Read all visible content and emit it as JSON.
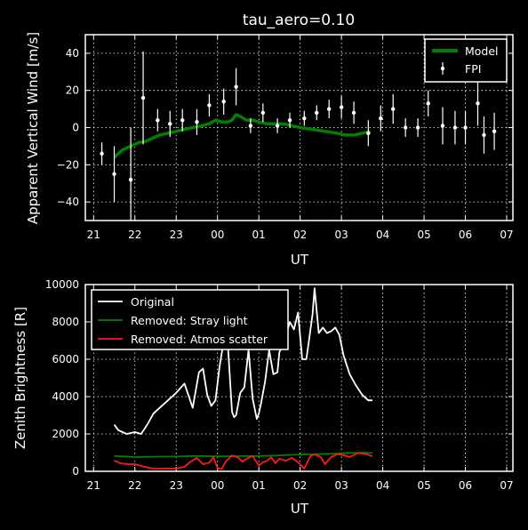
{
  "chart_data": [
    {
      "type": "scatter",
      "title": "tau_aero=0.10",
      "xlabel": "UT",
      "ylabel": "Apparent Vertical Wind [m/s]",
      "x_ticks": [
        "21",
        "22",
        "23",
        "00",
        "01",
        "02",
        "03",
        "04",
        "05",
        "06",
        "07"
      ],
      "y_ticks": [
        "−40",
        "−20",
        "0",
        "20",
        "40"
      ],
      "xlim": [
        20.8,
        31.15
      ],
      "ylim": [
        -50,
        50
      ],
      "grid": true,
      "legend_position": "top-right",
      "series": [
        {
          "name": "Model",
          "type": "line",
          "color": "#007f00",
          "x": [
            21.5,
            21.7,
            21.9,
            22.1,
            22.25,
            22.4,
            22.6,
            22.8,
            23.0,
            23.2,
            23.4,
            23.6,
            23.8,
            23.95,
            24.1,
            24.25,
            24.35,
            24.45,
            24.55,
            24.7,
            24.85,
            25.0,
            25.2,
            25.4,
            25.6,
            25.8,
            26.0,
            26.3,
            26.6,
            26.9,
            27.1,
            27.3,
            27.5,
            27.7
          ],
          "y": [
            -16,
            -12,
            -10,
            -8,
            -7.5,
            -6,
            -4,
            -3,
            -2,
            -1,
            0,
            1,
            2,
            4,
            3,
            3,
            4,
            7,
            6,
            4,
            4,
            3,
            2,
            2,
            2,
            1,
            0,
            -1,
            -2,
            -3,
            -4,
            -4,
            -3,
            -2
          ]
        },
        {
          "name": "FPI",
          "type": "errorbar",
          "color": "#ffffff",
          "points": [
            {
              "x": 21.2,
              "y": -14,
              "err": 6
            },
            {
              "x": 21.5,
              "y": -25,
              "err": 15
            },
            {
              "x": 21.9,
              "y": -28,
              "err": 28
            },
            {
              "x": 22.2,
              "y": 16,
              "err": 25
            },
            {
              "x": 22.55,
              "y": 4,
              "err": 6
            },
            {
              "x": 22.85,
              "y": 2,
              "err": 7
            },
            {
              "x": 23.15,
              "y": 4,
              "err": 6
            },
            {
              "x": 23.5,
              "y": 3,
              "err": 7
            },
            {
              "x": 23.8,
              "y": 12,
              "err": 6
            },
            {
              "x": 24.15,
              "y": 14,
              "err": 7
            },
            {
              "x": 24.45,
              "y": 22,
              "err": 10
            },
            {
              "x": 24.8,
              "y": 1,
              "err": 4
            },
            {
              "x": 25.1,
              "y": 8,
              "err": 5
            },
            {
              "x": 25.45,
              "y": 1,
              "err": 4
            },
            {
              "x": 25.75,
              "y": 4,
              "err": 4
            },
            {
              "x": 26.1,
              "y": 5,
              "err": 4
            },
            {
              "x": 26.4,
              "y": 8,
              "err": 4
            },
            {
              "x": 26.7,
              "y": 10,
              "err": 5
            },
            {
              "x": 27.0,
              "y": 11,
              "err": 6
            },
            {
              "x": 27.3,
              "y": 8,
              "err": 6
            },
            {
              "x": 27.65,
              "y": -3,
              "err": 7
            },
            {
              "x": 27.95,
              "y": 5,
              "err": 7
            },
            {
              "x": 28.25,
              "y": 10,
              "err": 8
            },
            {
              "x": 28.55,
              "y": 0,
              "err": 5
            },
            {
              "x": 28.85,
              "y": 0,
              "err": 5
            },
            {
              "x": 29.1,
              "y": 13,
              "err": 7
            },
            {
              "x": 29.45,
              "y": 1,
              "err": 10
            },
            {
              "x": 29.75,
              "y": 0,
              "err": 9
            },
            {
              "x": 30.0,
              "y": 0,
              "err": 9
            },
            {
              "x": 30.3,
              "y": 13,
              "err": 12
            },
            {
              "x": 30.45,
              "y": -4,
              "err": 10
            },
            {
              "x": 30.7,
              "y": -2,
              "err": 10
            }
          ]
        }
      ]
    },
    {
      "type": "line",
      "title": "",
      "xlabel": "UT",
      "ylabel": "Zenith Brightness [R]",
      "x_ticks": [
        "21",
        "22",
        "23",
        "00",
        "01",
        "02",
        "03",
        "04",
        "05",
        "06",
        "07"
      ],
      "y_ticks": [
        "0",
        "2000",
        "4000",
        "6000",
        "8000",
        "10000"
      ],
      "xlim": [
        20.8,
        31.15
      ],
      "ylim": [
        0,
        10000
      ],
      "grid": true,
      "legend_position": "top-left",
      "series": [
        {
          "name": "Original",
          "color": "#ffffff",
          "x": [
            21.5,
            21.6,
            21.8,
            22.0,
            22.15,
            22.3,
            22.45,
            22.6,
            22.75,
            22.9,
            23.0,
            23.2,
            23.4,
            23.55,
            23.65,
            23.75,
            23.85,
            23.95,
            24.05,
            24.15,
            24.25,
            24.35,
            24.4,
            24.45,
            24.55,
            24.65,
            24.75,
            24.85,
            24.95,
            25.0,
            25.05,
            25.15,
            25.25,
            25.35,
            25.45,
            25.5,
            25.6,
            25.7,
            25.75,
            25.85,
            25.95,
            26.05,
            26.15,
            26.2,
            26.3,
            26.35,
            26.45,
            26.55,
            26.65,
            26.75,
            26.85,
            26.95,
            27.05,
            27.2,
            27.35,
            27.5,
            27.65,
            27.75
          ],
          "y": [
            2500,
            2200,
            2000,
            2100,
            2000,
            2500,
            3100,
            3400,
            3700,
            4000,
            4200,
            4700,
            3400,
            5300,
            5500,
            4100,
            3500,
            3800,
            5600,
            7000,
            6800,
            3200,
            2900,
            3000,
            4200,
            4500,
            6500,
            3900,
            2800,
            3100,
            3600,
            4800,
            6500,
            5200,
            5300,
            6400,
            6800,
            7600,
            8000,
            7600,
            8500,
            6000,
            6000,
            6800,
            8400,
            9800,
            7400,
            7700,
            7400,
            7500,
            7700,
            7300,
            6200,
            5200,
            4600,
            4100,
            3800,
            3800
          ]
        },
        {
          "name": "Removed: Stray light",
          "color": "#008000",
          "x": [
            21.5,
            22.0,
            22.5,
            23.0,
            23.5,
            24.0,
            24.5,
            25.0,
            25.5,
            26.0,
            26.5,
            27.0,
            27.5,
            27.75
          ],
          "y": [
            820,
            760,
            780,
            790,
            820,
            800,
            810,
            820,
            850,
            900,
            920,
            960,
            1000,
            980
          ]
        },
        {
          "name": "Removed: Atmos scatter",
          "color": "#ff1a1a",
          "x": [
            21.5,
            21.65,
            21.8,
            22.0,
            22.2,
            22.4,
            22.6,
            22.8,
            23.0,
            23.2,
            23.35,
            23.5,
            23.65,
            23.8,
            23.9,
            24.0,
            24.1,
            24.2,
            24.35,
            24.5,
            24.6,
            24.7,
            24.85,
            25.0,
            25.1,
            25.2,
            25.3,
            25.4,
            25.5,
            25.65,
            25.8,
            25.95,
            26.1,
            26.25,
            26.35,
            26.5,
            26.6,
            26.75,
            26.9,
            27.05,
            27.2,
            27.4,
            27.6,
            27.75
          ],
          "y": [
            580,
            430,
            380,
            380,
            260,
            160,
            140,
            150,
            150,
            240,
            520,
            720,
            380,
            460,
            760,
            160,
            130,
            520,
            850,
            740,
            520,
            660,
            820,
            300,
            480,
            560,
            760,
            430,
            680,
            560,
            720,
            480,
            150,
            820,
            900,
            760,
            380,
            760,
            920,
            860,
            760,
            980,
            920,
            800
          ]
        }
      ]
    }
  ]
}
